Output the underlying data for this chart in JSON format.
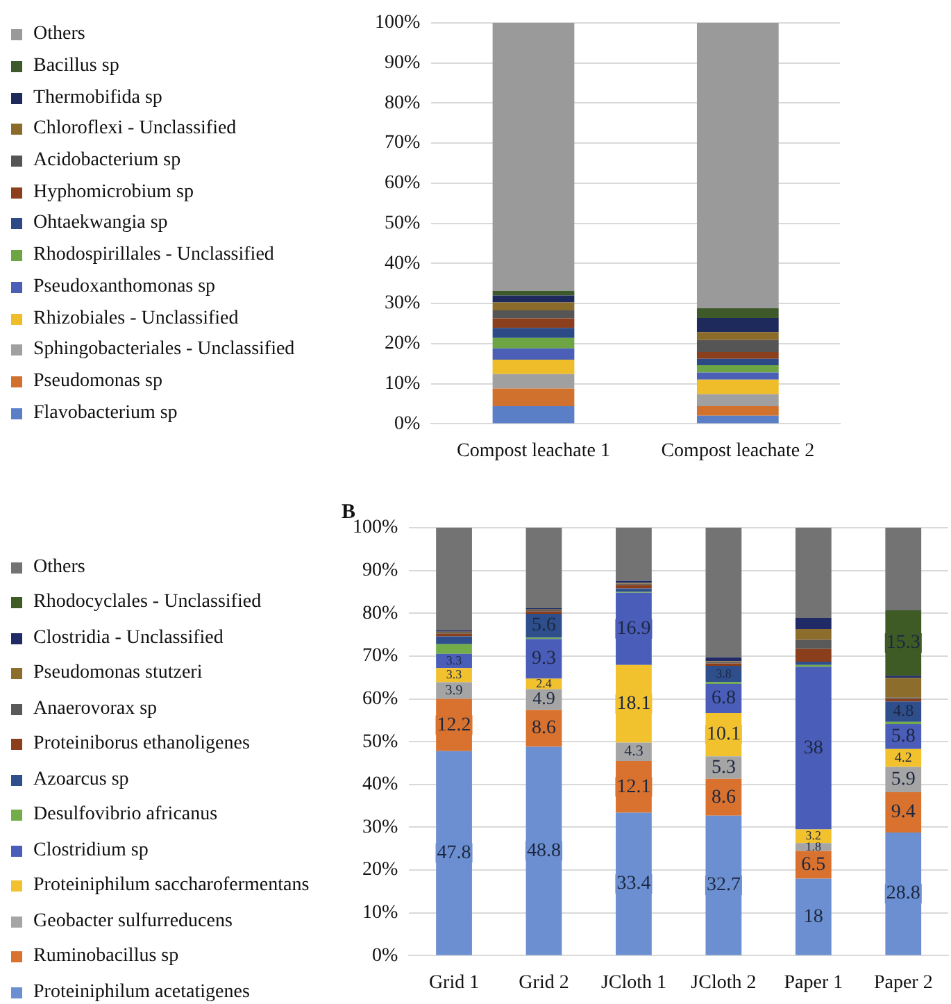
{
  "chart_data": [
    {
      "type": "bar",
      "stacked": true,
      "legend": "left",
      "grid": "y",
      "categories": [
        "Compost leachate 1",
        "Compost leachate 2"
      ],
      "ylim": [
        0,
        100
      ],
      "yticks": [
        {
          "value": 0,
          "label": "0%"
        },
        {
          "value": 10,
          "label": "10%"
        },
        {
          "value": 20,
          "label": "20%"
        },
        {
          "value": 30,
          "label": "30%"
        },
        {
          "value": 40,
          "label": "40%"
        },
        {
          "value": 50,
          "label": "50%"
        },
        {
          "value": 60,
          "label": "60%"
        },
        {
          "value": 70,
          "label": "70%"
        },
        {
          "value": 80,
          "label": "80%"
        },
        {
          "value": 90,
          "label": "90%"
        },
        {
          "value": 100,
          "label": "100%"
        }
      ],
      "series": [
        {
          "name": "Flavobacterium sp",
          "color": "#5b7fc7",
          "values": [
            4.4,
            2.0
          ]
        },
        {
          "name": "Pseudomonas sp",
          "color": "#d0712e",
          "values": [
            4.4,
            2.4
          ]
        },
        {
          "name": "Sphingobacteriales - Unclassified",
          "color": "#a0a0a0",
          "values": [
            3.6,
            3.0
          ]
        },
        {
          "name": "Rhizobiales - Unclassified",
          "color": "#efbd2a",
          "values": [
            3.6,
            3.6
          ]
        },
        {
          "name": "Pseudoxanthomonas sp",
          "color": "#4a5fb5",
          "values": [
            2.8,
            1.8
          ]
        },
        {
          "name": "Rhodospirillales - Unclassified",
          "color": "#6ea544",
          "values": [
            2.6,
            1.8
          ]
        },
        {
          "name": "Ohtaekwangia sp",
          "color": "#2c4a85",
          "values": [
            2.5,
            1.6
          ]
        },
        {
          "name": "Hyphomicrobium sp",
          "color": "#8b3f1c",
          "values": [
            2.4,
            1.7
          ]
        },
        {
          "name": "Acidobacterium sp",
          "color": "#555555",
          "values": [
            2.0,
            3.0
          ]
        },
        {
          "name": "Chloroflexi - Unclassified",
          "color": "#8a6b2a",
          "values": [
            2.0,
            2.0
          ]
        },
        {
          "name": "Thermobifida sp",
          "color": "#1f2a5c",
          "values": [
            1.7,
            3.5
          ]
        },
        {
          "name": "Bacillus sp",
          "color": "#3f5a2a",
          "values": [
            1.2,
            2.4
          ]
        },
        {
          "name": "Others",
          "color": "#9a9a9a",
          "values": [
            66.8,
            71.2
          ]
        }
      ]
    },
    {
      "type": "bar",
      "stacked": true,
      "legend": "left",
      "grid": "y",
      "title": "B",
      "categories": [
        "Grid 1",
        "Grid 2",
        "JCloth 1",
        "JCloth 2",
        "Paper 1",
        "Paper 2"
      ],
      "ylim": [
        0,
        100
      ],
      "yticks": [
        {
          "value": 0,
          "label": "0%"
        },
        {
          "value": 10,
          "label": "10%"
        },
        {
          "value": 20,
          "label": "20%"
        },
        {
          "value": 30,
          "label": "30%"
        },
        {
          "value": 40,
          "label": "40%"
        },
        {
          "value": 50,
          "label": "50%"
        },
        {
          "value": 60,
          "label": "60%"
        },
        {
          "value": 70,
          "label": "70%"
        },
        {
          "value": 80,
          "label": "80%"
        },
        {
          "value": 90,
          "label": "90%"
        },
        {
          "value": 100,
          "label": "100%"
        }
      ],
      "series": [
        {
          "name": "Proteiniphilum acetatigenes",
          "color": "#6b8fd0",
          "values": [
            47.8,
            48.8,
            33.4,
            32.7,
            18,
            28.8
          ],
          "value_labels": [
            "47.8",
            "48.8",
            "33.4",
            "32.7",
            "18",
            "28.8"
          ]
        },
        {
          "name": "Ruminobacillus sp",
          "color": "#d9722e",
          "values": [
            12.2,
            8.6,
            12.1,
            8.6,
            6.5,
            9.4
          ],
          "value_labels": [
            "12.2",
            "8.6",
            "12.1",
            "8.6",
            "6.5",
            "9.4"
          ]
        },
        {
          "name": "Geobacter sulfurreducens",
          "color": "#a5a5a5",
          "values": [
            3.9,
            4.9,
            4.3,
            5.3,
            1.8,
            5.9
          ],
          "value_labels": [
            "3.9",
            "4.9",
            "4.3",
            "5.3",
            "1.8",
            "5.9"
          ]
        },
        {
          "name": "Proteiniphilum saccharofermentans",
          "color": "#f2c12e",
          "values": [
            3.3,
            2.4,
            18.1,
            10.1,
            3.2,
            4.2
          ],
          "value_labels": [
            "3.3",
            "2.4",
            "18.1",
            "10.1",
            "3.2",
            "4.2"
          ]
        },
        {
          "name": "Clostridium sp",
          "color": "#4a5db8",
          "values": [
            3.3,
            9.3,
            16.9,
            6.8,
            38,
            5.8
          ],
          "value_labels": [
            "3.3",
            "9.3",
            "16.9",
            "6.8",
            "38",
            "5.8"
          ]
        },
        {
          "name": "Desulfovibrio africanus",
          "color": "#72ad4a",
          "values": [
            2.3,
            0.3,
            0.2,
            0.4,
            0.4,
            0.5
          ]
        },
        {
          "name": "Azoarcus sp",
          "color": "#2e4f8c",
          "values": [
            1.8,
            5.6,
            0.8,
            3.8,
            0.8,
            4.8
          ],
          "value_labels": [
            null,
            "5.6",
            null,
            "3.8",
            null,
            "4.8"
          ]
        },
        {
          "name": "Proteiniborus ethanoligenes",
          "color": "#8a3e1c",
          "values": [
            0.6,
            0.5,
            0.8,
            0.6,
            3.0,
            0.6
          ]
        },
        {
          "name": "Anaerovorax sp",
          "color": "#595959",
          "values": [
            0.3,
            0.3,
            0.3,
            0.3,
            2.1,
            0.3
          ]
        },
        {
          "name": "Pseudomonas stutzeri",
          "color": "#8c6d2c",
          "values": [
            0.2,
            0.2,
            0.2,
            0.2,
            2.5,
            4.6
          ]
        },
        {
          "name": "Clostridia - Unclassified",
          "color": "#1f2a66",
          "values": [
            0.3,
            0.3,
            0.5,
            0.9,
            2.6,
            0.5
          ]
        },
        {
          "name": "Rhodocyclales - Unclassified",
          "color": "#3e5a25",
          "values": [
            null,
            null,
            null,
            null,
            null,
            15.3
          ],
          "value_labels": [
            null,
            null,
            null,
            null,
            null,
            "15.3"
          ]
        },
        {
          "name": "Others",
          "color": "#737373",
          "values": [
            24.0,
            18.8,
            12.4,
            30.3,
            21.1,
            19.3
          ]
        }
      ]
    }
  ]
}
